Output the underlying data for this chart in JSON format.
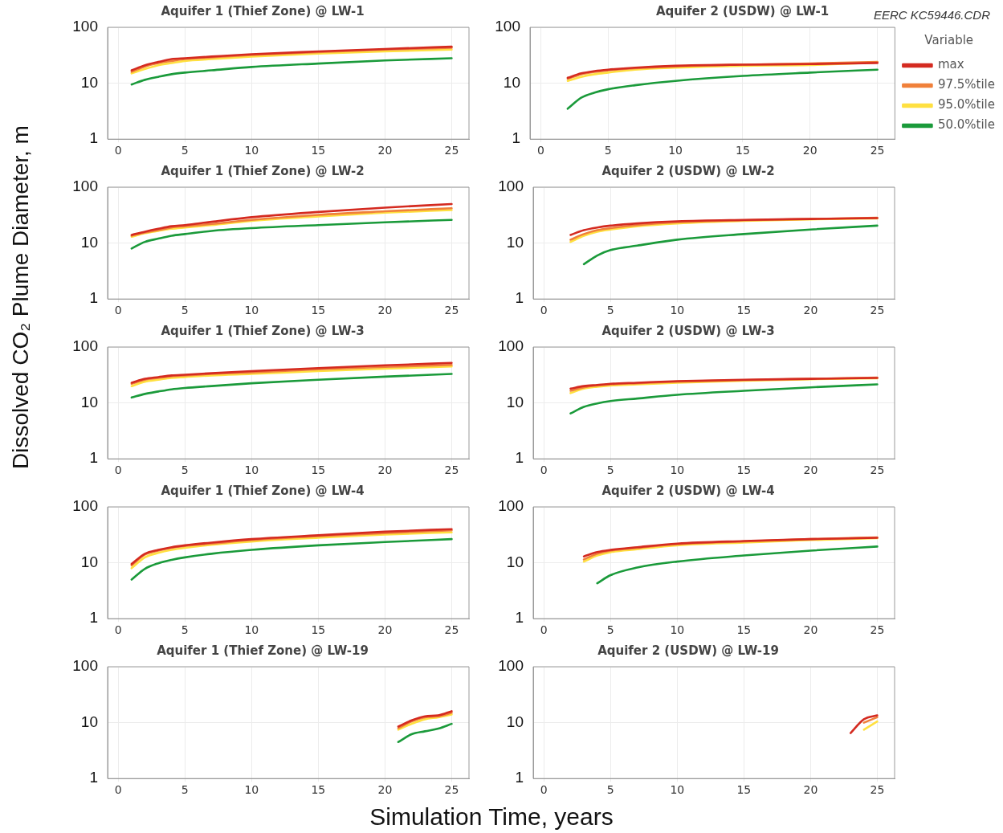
{
  "chart_data": [
    {
      "type": "line",
      "title": "Aquifer 1 (Thief Zone) @ LW-1",
      "ylabel": "Dissolved CO₂ Plume Diameter, m",
      "log": "y",
      "grid": true,
      "marker": "none",
      "line_style": "solid",
      "xlim": [
        -0.8,
        26.3
      ],
      "xticks": [
        0,
        5,
        10,
        15,
        20,
        25
      ],
      "ylim": [
        1,
        100
      ],
      "yticks": [
        1,
        10,
        100
      ],
      "series": [
        {
          "color": "#d42a20",
          "x": [
            1,
            2,
            3,
            4,
            5,
            7,
            10,
            15,
            20,
            25
          ],
          "values": [
            17,
            21,
            24,
            27,
            28,
            30,
            33,
            37,
            41,
            45
          ]
        },
        {
          "color": "#f0803a",
          "x": [
            1,
            2,
            3,
            4,
            5,
            7,
            10,
            15,
            20,
            25
          ],
          "values": [
            16,
            20,
            23,
            25,
            27,
            29,
            32,
            36,
            40,
            43
          ]
        },
        {
          "color": "#ffe040",
          "x": [
            1,
            2,
            3,
            4,
            5,
            7,
            10,
            15,
            20,
            25
          ],
          "values": [
            15,
            18,
            21,
            23,
            25,
            27,
            30,
            34,
            37,
            40
          ]
        },
        {
          "color": "#1a9a3a",
          "x": [
            1,
            2,
            3,
            4,
            5,
            7,
            10,
            15,
            20,
            25
          ],
          "values": [
            9.5,
            11.5,
            13,
            14.5,
            15.5,
            17,
            19.5,
            22.5,
            25.5,
            28
          ]
        }
      ]
    },
    {
      "type": "line",
      "title": "Aquifer 2 (USDW) @ LW-1",
      "legend": "right",
      "legend_title": "Variable",
      "annotations": [
        "EERC KC59446.CDR"
      ],
      "log": "y",
      "grid": true,
      "marker": "none",
      "line_style": "solid",
      "xlim": [
        -0.8,
        26.3
      ],
      "xticks": [
        0,
        5,
        10,
        15,
        20,
        25
      ],
      "ylim": [
        1,
        100
      ],
      "yticks": [
        1,
        10,
        100
      ],
      "series": [
        {
          "name": "max",
          "color": "#d42a20",
          "x": [
            2,
            3,
            4,
            5,
            7,
            10,
            15,
            20,
            25
          ],
          "values": [
            12.5,
            15,
            16.5,
            17.5,
            19,
            20.5,
            21.5,
            22,
            23
          ]
        },
        {
          "name": "97.5%tile",
          "color": "#f0803a",
          "x": [
            2,
            3,
            4,
            5,
            7,
            10,
            15,
            20,
            25
          ],
          "values": [
            12,
            14.5,
            16,
            17,
            18.5,
            20,
            21.5,
            22.5,
            24
          ]
        },
        {
          "name": "95.0%tile",
          "color": "#ffe040",
          "x": [
            2,
            3,
            4,
            5,
            7,
            10,
            15,
            20,
            25
          ],
          "values": [
            11,
            13,
            14.5,
            15.5,
            17.5,
            19,
            20.5,
            21.2,
            23.5
          ]
        },
        {
          "name": "50.0%tile",
          "color": "#1a9a3a",
          "x": [
            2,
            3,
            4,
            5,
            7,
            10,
            15,
            20,
            25
          ],
          "values": [
            3.5,
            5.5,
            6.8,
            7.8,
            9.2,
            11,
            13.5,
            15.5,
            17.5
          ]
        }
      ]
    },
    {
      "type": "line",
      "title": "Aquifer 1 (Thief Zone) @ LW-2",
      "log": "y",
      "grid": true,
      "marker": "none",
      "line_style": "solid",
      "xlim": [
        -0.8,
        26.3
      ],
      "xticks": [
        0,
        5,
        10,
        15,
        20,
        25
      ],
      "ylim": [
        1,
        100
      ],
      "yticks": [
        1,
        10,
        100
      ],
      "series": [
        {
          "color": "#d42a20",
          "x": [
            1,
            2,
            3,
            4,
            5,
            7,
            10,
            15,
            20,
            25
          ],
          "values": [
            14,
            16,
            18,
            20,
            21,
            24,
            29,
            36,
            43,
            50
          ]
        },
        {
          "color": "#f0803a",
          "x": [
            1,
            2,
            3,
            4,
            5,
            7,
            10,
            15,
            20,
            25
          ],
          "values": [
            13.5,
            15.5,
            17,
            19,
            20,
            22,
            26,
            32,
            37,
            42
          ]
        },
        {
          "color": "#ffe040",
          "x": [
            1,
            2,
            3,
            4,
            5,
            7,
            10,
            15,
            20,
            25
          ],
          "values": [
            13,
            15,
            16.5,
            18,
            19,
            21,
            25,
            30,
            35,
            39
          ]
        },
        {
          "color": "#1a9a3a",
          "x": [
            1,
            2,
            3,
            4,
            5,
            7,
            10,
            15,
            20,
            25
          ],
          "values": [
            8,
            10.5,
            12,
            13.5,
            14.5,
            16.5,
            18.5,
            21,
            23.5,
            26
          ]
        }
      ]
    },
    {
      "type": "line",
      "title": "Aquifer 2 (USDW) @ LW-2",
      "log": "y",
      "grid": true,
      "marker": "none",
      "line_style": "solid",
      "xlim": [
        -0.8,
        26.3
      ],
      "xticks": [
        0,
        5,
        10,
        15,
        20,
        25
      ],
      "ylim": [
        1,
        100
      ],
      "yticks": [
        1,
        10,
        100
      ],
      "series": [
        {
          "color": "#d42a20",
          "x": [
            2,
            3,
            4,
            5,
            7,
            10,
            15,
            20,
            25
          ],
          "values": [
            14,
            17,
            19,
            20.5,
            22.5,
            24.5,
            26,
            27,
            28
          ]
        },
        {
          "color": "#f0803a",
          "x": [
            2,
            3,
            4,
            5,
            7,
            10,
            15,
            20,
            25
          ],
          "values": [
            11.5,
            14.5,
            17,
            18.5,
            21,
            23.5,
            25.5,
            27,
            28.5
          ]
        },
        {
          "color": "#ffe040",
          "x": [
            2,
            3,
            4,
            5,
            7,
            10,
            15,
            20,
            25
          ],
          "values": [
            10.5,
            13.5,
            16,
            17.5,
            20,
            22.5,
            25,
            26.5,
            27.5
          ]
        },
        {
          "color": "#1a9a3a",
          "x": [
            3,
            4,
            5,
            7,
            10,
            15,
            20,
            25
          ],
          "values": [
            4.2,
            6,
            7.5,
            9,
            11.5,
            14.5,
            17.5,
            20.5
          ]
        }
      ]
    },
    {
      "type": "line",
      "title": "Aquifer 1 (Thief Zone) @ LW-3",
      "log": "y",
      "grid": true,
      "marker": "none",
      "line_style": "solid",
      "xlim": [
        -0.8,
        26.3
      ],
      "xticks": [
        0,
        5,
        10,
        15,
        20,
        25
      ],
      "ylim": [
        1,
        100
      ],
      "yticks": [
        1,
        10,
        100
      ],
      "series": [
        {
          "color": "#d42a20",
          "x": [
            1,
            2,
            3,
            4,
            5,
            7,
            10,
            15,
            20,
            25
          ],
          "values": [
            23,
            27,
            29,
            31,
            32,
            34,
            37,
            42,
            47,
            52
          ]
        },
        {
          "color": "#f0803a",
          "x": [
            1,
            2,
            3,
            4,
            5,
            7,
            10,
            15,
            20,
            25
          ],
          "values": [
            22,
            26,
            28,
            30,
            31,
            33,
            35,
            40,
            44,
            48
          ]
        },
        {
          "color": "#ffe040",
          "x": [
            1,
            2,
            3,
            4,
            5,
            7,
            10,
            15,
            20,
            25
          ],
          "values": [
            20,
            24,
            26,
            28,
            29,
            31,
            33,
            37,
            41,
            45
          ]
        },
        {
          "color": "#1a9a3a",
          "x": [
            1,
            2,
            3,
            4,
            5,
            7,
            10,
            15,
            20,
            25
          ],
          "values": [
            12.5,
            14.5,
            16,
            17.5,
            18.5,
            20,
            22.5,
            26,
            29.5,
            33
          ]
        }
      ]
    },
    {
      "type": "line",
      "title": "Aquifer 2 (USDW) @ LW-3",
      "log": "y",
      "grid": true,
      "marker": "none",
      "line_style": "solid",
      "xlim": [
        -0.8,
        26.3
      ],
      "xticks": [
        0,
        5,
        10,
        15,
        20,
        25
      ],
      "ylim": [
        1,
        100
      ],
      "yticks": [
        1,
        10,
        100
      ],
      "series": [
        {
          "color": "#d42a20",
          "x": [
            2,
            3,
            4,
            5,
            7,
            10,
            15,
            20,
            25
          ],
          "values": [
            18,
            20,
            21,
            22,
            23,
            24.5,
            26,
            27,
            28
          ]
        },
        {
          "color": "#f0803a",
          "x": [
            2,
            3,
            4,
            5,
            7,
            10,
            15,
            20,
            25
          ],
          "values": [
            16.5,
            19,
            20.5,
            21.5,
            22.5,
            24,
            25.5,
            27,
            28.5
          ]
        },
        {
          "color": "#ffe040",
          "x": [
            2,
            3,
            4,
            5,
            7,
            10,
            15,
            20,
            25
          ],
          "values": [
            15,
            18,
            19.5,
            20.5,
            21.5,
            23,
            25,
            26.5,
            27.5
          ]
        },
        {
          "color": "#1a9a3a",
          "x": [
            2,
            3,
            4,
            5,
            7,
            10,
            15,
            20,
            25
          ],
          "values": [
            6.5,
            8.5,
            9.8,
            10.8,
            12,
            14,
            16.5,
            19,
            21.5
          ]
        }
      ]
    },
    {
      "type": "line",
      "title": "Aquifer 1 (Thief Zone) @ LW-4",
      "log": "y",
      "grid": true,
      "marker": "none",
      "line_style": "solid",
      "xlim": [
        -0.8,
        26.3
      ],
      "xticks": [
        0,
        5,
        10,
        15,
        20,
        25
      ],
      "ylim": [
        1,
        100
      ],
      "yticks": [
        1,
        10,
        100
      ],
      "series": [
        {
          "color": "#d42a20",
          "x": [
            1,
            2,
            3,
            4,
            5,
            7,
            10,
            15,
            20,
            25
          ],
          "values": [
            9.5,
            14.5,
            17,
            19,
            20.5,
            23,
            26.5,
            31,
            36,
            40
          ]
        },
        {
          "color": "#f0803a",
          "x": [
            1,
            2,
            3,
            4,
            5,
            7,
            10,
            15,
            20,
            25
          ],
          "values": [
            9,
            14,
            16.5,
            18.5,
            20,
            22,
            25.5,
            30,
            34,
            38
          ]
        },
        {
          "color": "#ffe040",
          "x": [
            1,
            2,
            3,
            4,
            5,
            7,
            10,
            15,
            20,
            25
          ],
          "values": [
            8,
            12.5,
            15,
            17,
            18.5,
            21,
            24,
            28,
            32,
            35
          ]
        },
        {
          "color": "#1a9a3a",
          "x": [
            1,
            2,
            3,
            4,
            5,
            7,
            10,
            15,
            20,
            25
          ],
          "values": [
            5,
            7.8,
            9.8,
            11.3,
            12.5,
            14.5,
            17,
            20.5,
            23.5,
            26.5
          ]
        }
      ]
    },
    {
      "type": "line",
      "title": "Aquifer 2 (USDW) @ LW-4",
      "log": "y",
      "grid": true,
      "marker": "none",
      "line_style": "solid",
      "xlim": [
        -0.8,
        26.3
      ],
      "xticks": [
        0,
        5,
        10,
        15,
        20,
        25
      ],
      "ylim": [
        1,
        100
      ],
      "yticks": [
        1,
        10,
        100
      ],
      "series": [
        {
          "color": "#d42a20",
          "x": [
            3,
            4,
            5,
            7,
            10,
            15,
            20,
            25
          ],
          "values": [
            13,
            15.5,
            17,
            19,
            22,
            24.5,
            26.5,
            28
          ]
        },
        {
          "color": "#f0803a",
          "x": [
            3,
            4,
            5,
            7,
            10,
            15,
            20,
            25
          ],
          "values": [
            11.5,
            14.5,
            16.5,
            18.5,
            21.5,
            24,
            26.5,
            28.5
          ]
        },
        {
          "color": "#ffe040",
          "x": [
            3,
            4,
            5,
            7,
            10,
            15,
            20,
            25
          ],
          "values": [
            10.5,
            13.5,
            15.5,
            17.5,
            20.5,
            23,
            25.5,
            27.5
          ]
        },
        {
          "color": "#1a9a3a",
          "x": [
            4,
            5,
            7,
            10,
            15,
            20,
            25
          ],
          "values": [
            4.3,
            6,
            8.2,
            10.5,
            13.5,
            16.5,
            19.5
          ]
        }
      ]
    },
    {
      "type": "line",
      "title": "Aquifer 1 (Thief Zone) @ LW-19",
      "xlabel": "Simulation Time, years",
      "log": "y",
      "grid": true,
      "marker": "none",
      "line_style": "solid",
      "xlim": [
        -0.8,
        26.3
      ],
      "xticks": [
        0,
        5,
        10,
        15,
        20,
        25
      ],
      "ylim": [
        1,
        100
      ],
      "yticks": [
        1,
        10,
        100
      ],
      "series": [
        {
          "color": "#d42a20",
          "x": [
            21,
            22,
            23,
            24,
            25
          ],
          "values": [
            8.5,
            11,
            13,
            13.5,
            16
          ]
        },
        {
          "color": "#f0803a",
          "x": [
            21,
            22,
            23,
            24,
            25
          ],
          "values": [
            8,
            10.5,
            12.5,
            13,
            15
          ]
        },
        {
          "color": "#ffe040",
          "x": [
            21,
            22,
            23,
            24,
            25
          ],
          "values": [
            7.5,
            9.5,
            11.5,
            12.5,
            14
          ]
        },
        {
          "color": "#1a9a3a",
          "x": [
            21,
            22,
            23,
            24,
            25
          ],
          "values": [
            4.5,
            6.2,
            7,
            7.8,
            9.5
          ]
        }
      ]
    },
    {
      "type": "line",
      "title": "Aquifer 2 (USDW) @ LW-19",
      "log": "y",
      "grid": true,
      "marker": "none",
      "line_style": "solid",
      "xlim": [
        -0.8,
        26.3
      ],
      "xticks": [
        0,
        5,
        10,
        15,
        20,
        25
      ],
      "ylim": [
        1,
        100
      ],
      "yticks": [
        1,
        10,
        100
      ],
      "series": [
        {
          "color": "#d42a20",
          "x": [
            23,
            24,
            25
          ],
          "values": [
            6.5,
            11.5,
            13.5
          ]
        },
        {
          "color": "#f0803a",
          "x": [
            24,
            25
          ],
          "values": [
            10,
            12.5
          ]
        },
        {
          "color": "#ffe040",
          "x": [
            24,
            25
          ],
          "values": [
            7.5,
            10.5
          ]
        }
      ]
    }
  ]
}
